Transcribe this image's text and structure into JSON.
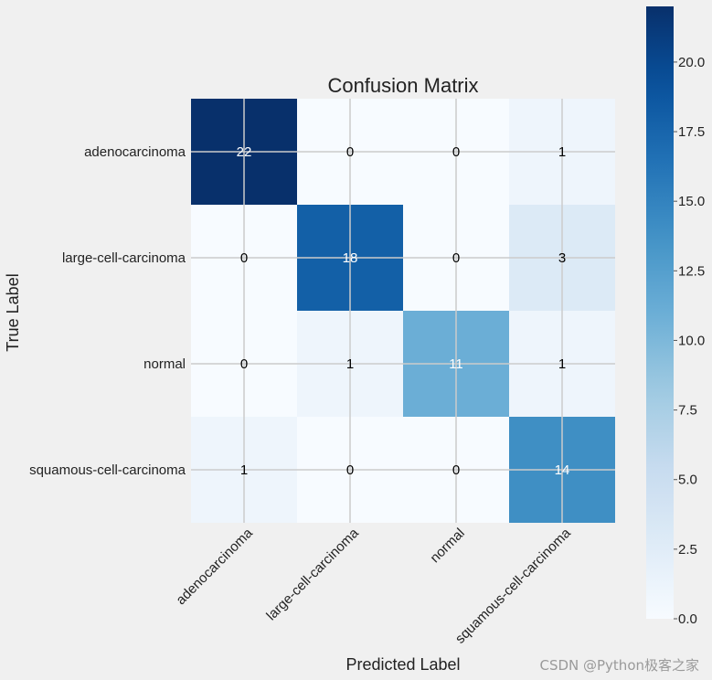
{
  "chart_data": {
    "type": "heatmap",
    "title": "Confusion Matrix",
    "xlabel": "Predicted Label",
    "ylabel": "True Label",
    "row_labels": [
      "adenocarcinoma",
      "large-cell-carcinoma",
      "normal",
      "squamous-cell-carcinoma"
    ],
    "col_labels": [
      "adenocarcinoma",
      "large-cell-carcinoma",
      "normal",
      "squamous-cell-carcinoma"
    ],
    "values": [
      [
        22,
        0,
        0,
        1
      ],
      [
        0,
        18,
        0,
        3
      ],
      [
        0,
        1,
        11,
        1
      ],
      [
        1,
        0,
        0,
        14
      ]
    ],
    "colormap": "Blues",
    "vmin": 0,
    "vmax": 22,
    "colorbar_ticks": [
      "0.0",
      "2.5",
      "5.0",
      "7.5",
      "10.0",
      "12.5",
      "15.0",
      "17.5",
      "20.0"
    ],
    "grid": true
  },
  "watermark": "CSDN @Python极客之家",
  "colors": {
    "background": "#f0f0f0",
    "gridline": "#cbcbcb",
    "text": "#222222"
  }
}
